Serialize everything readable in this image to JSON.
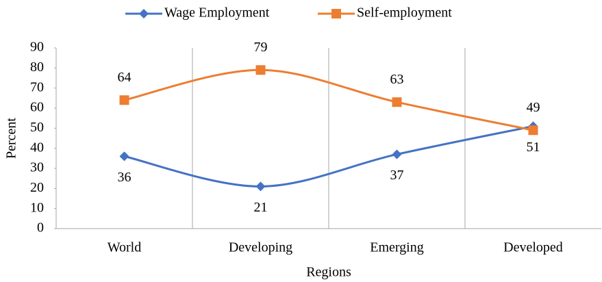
{
  "chart_data": {
    "type": "line",
    "smooth": true,
    "x_label": "Regions",
    "y_label": "Percent",
    "categories": [
      "World",
      "Developing",
      "Emerging",
      "Developed"
    ],
    "series": [
      {
        "name": "Wage Employment",
        "color": "#4472c4",
        "marker": "diamond",
        "values": [
          36,
          21,
          37,
          51
        ],
        "label_position": "below"
      },
      {
        "name": "Self-employment",
        "color": "#ed7d31",
        "marker": "square",
        "values": [
          64,
          79,
          63,
          49
        ],
        "label_position": "above"
      }
    ],
    "ylim": [
      0,
      90
    ],
    "yticks": [
      0,
      10,
      20,
      30,
      40,
      50,
      60,
      70,
      80,
      90
    ],
    "legend": "top"
  }
}
